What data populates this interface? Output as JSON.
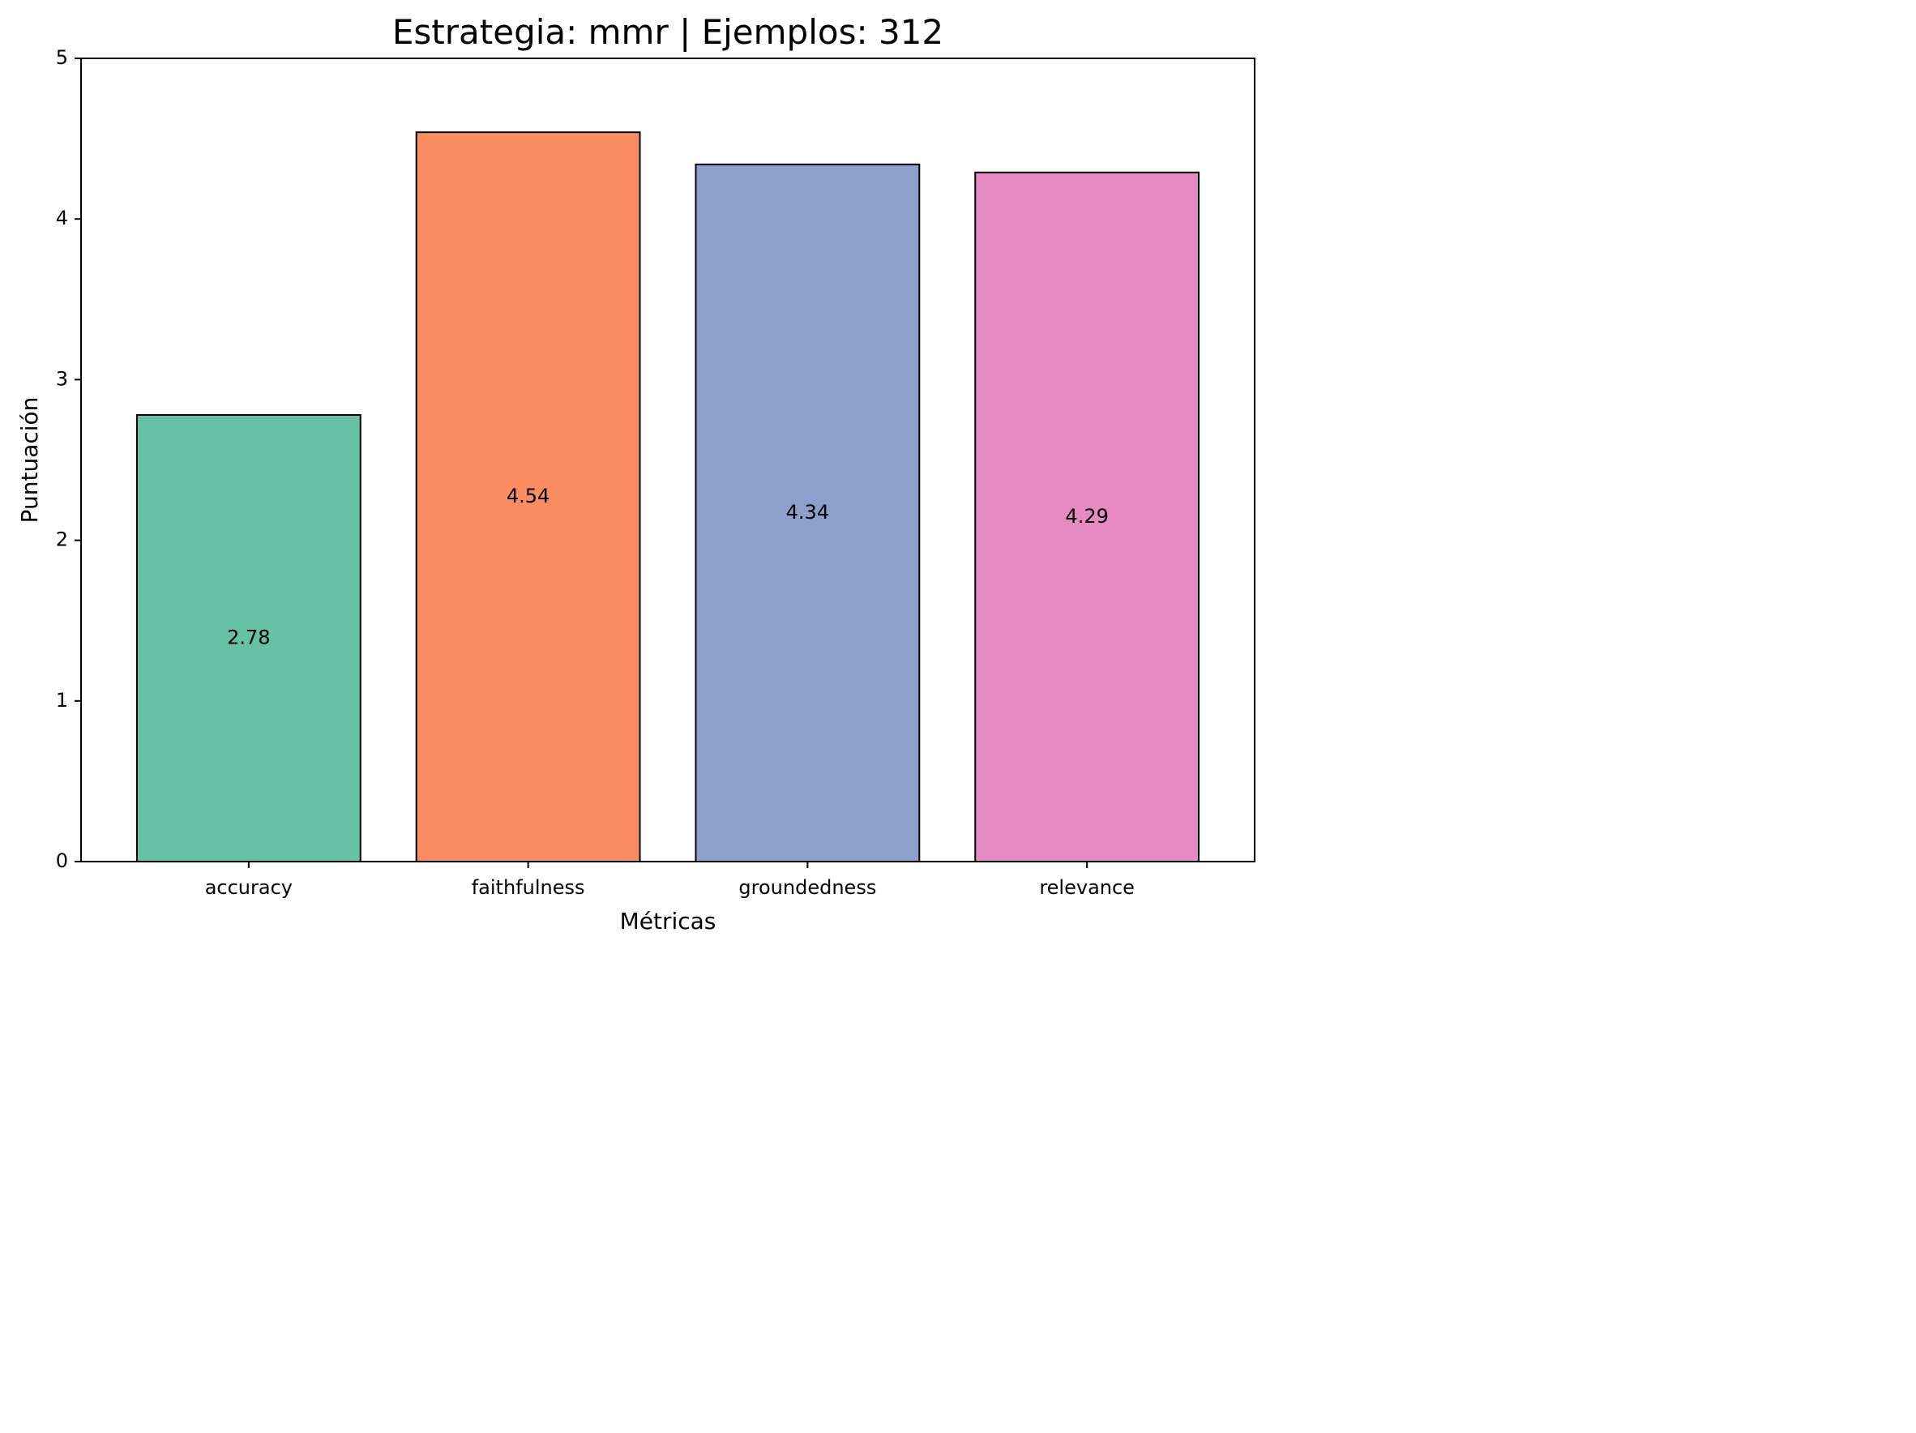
{
  "chart_data": {
    "type": "bar",
    "title": "Estrategia: mmr | Ejemplos: 312",
    "xlabel": "Métricas",
    "ylabel": "Puntuación",
    "categories": [
      "accuracy",
      "faithfulness",
      "groundedness",
      "relevance"
    ],
    "values": [
      2.78,
      4.54,
      4.34,
      4.29
    ],
    "value_labels": [
      "2.78",
      "4.54",
      "4.34",
      "4.29"
    ],
    "colors": [
      "#66c2a5",
      "#fc8d62",
      "#8da0cb",
      "#e78ac3"
    ],
    "ylim": [
      0,
      5
    ],
    "yticks": [
      0,
      1,
      2,
      3,
      4,
      5
    ],
    "grid": false,
    "legend": "none"
  }
}
